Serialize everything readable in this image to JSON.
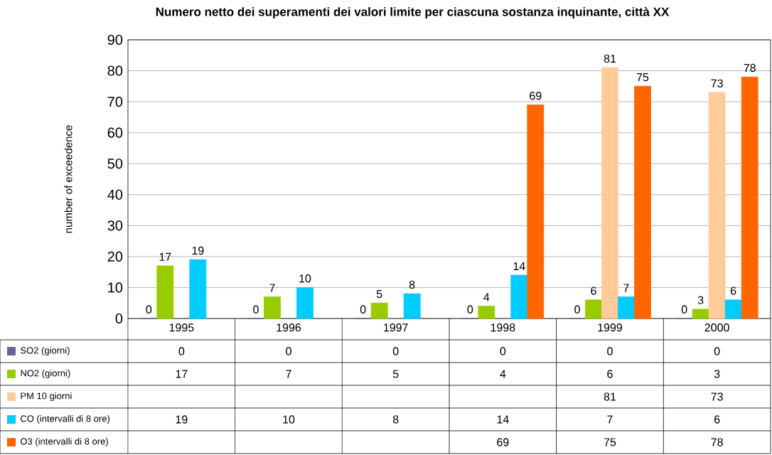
{
  "chart_data": {
    "type": "bar",
    "title": "Numero netto dei superamenti dei valori limite per ciascuna sostanza inquinante, città XX",
    "ylabel": "number of exceedence",
    "categories": [
      "1995",
      "1996",
      "1997",
      "1998",
      "1999",
      "2000"
    ],
    "series": [
      {
        "name": "SO2 (giorni)",
        "color": "#666699",
        "values": [
          0,
          0,
          0,
          0,
          0,
          0
        ],
        "value_labels": [
          "0",
          "0",
          "0",
          "0",
          "0",
          "0"
        ]
      },
      {
        "name": "NO2 (giorni)",
        "color": "#99cc00",
        "values": [
          17,
          7,
          5,
          4,
          6,
          3
        ],
        "value_labels": [
          "17",
          "7",
          "5",
          "4",
          "6",
          "3"
        ]
      },
      {
        "name": "PM 10 giorni",
        "color": "#ffcc99",
        "values": [
          null,
          null,
          null,
          null,
          81,
          73
        ],
        "value_labels": [
          null,
          null,
          null,
          null,
          "81",
          "73"
        ]
      },
      {
        "name": "CO (intervalli di 8 ore)",
        "color": "#00ccff",
        "values": [
          19,
          10,
          8,
          14,
          7,
          6
        ],
        "value_labels": [
          "19",
          "10",
          "8",
          "14",
          "7",
          "6"
        ]
      },
      {
        "name": "O3 (intervalli di 8 ore)",
        "color": "#ff6600",
        "values": [
          null,
          null,
          null,
          69,
          75,
          78
        ],
        "value_labels": [
          null,
          null,
          null,
          "69",
          "75",
          "78"
        ]
      }
    ],
    "ylim": [
      0,
      90
    ],
    "yticks": [
      0,
      10,
      20,
      30,
      40,
      50,
      60,
      70,
      80,
      90
    ],
    "grid": "y",
    "legend": "bottom"
  }
}
